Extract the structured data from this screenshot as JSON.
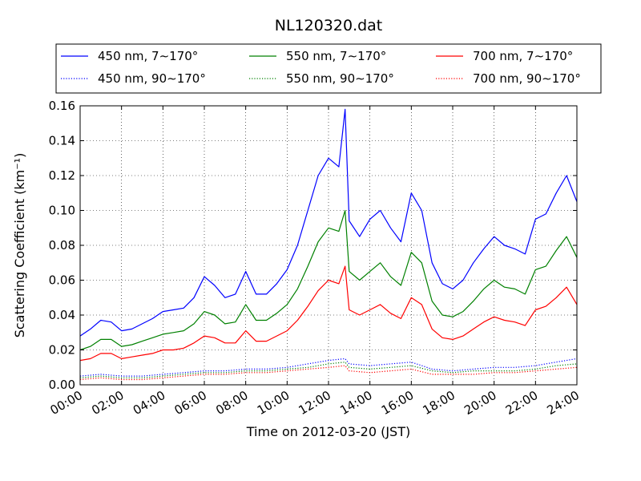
{
  "chart_data": {
    "type": "line",
    "title": "NL120320.dat",
    "xlabel": "Time on 2012-03-20 (JST)",
    "ylabel": "Scattering Coefficient (km⁻¹)",
    "xlim": [
      0,
      24
    ],
    "ylim": [
      0,
      0.16
    ],
    "grid": true,
    "legend_position": "top (above plot, 3 columns)",
    "x_ticks": [
      {
        "v": 0,
        "label": "00:00"
      },
      {
        "v": 2,
        "label": "02:00"
      },
      {
        "v": 4,
        "label": "04:00"
      },
      {
        "v": 6,
        "label": "06:00"
      },
      {
        "v": 8,
        "label": "08:00"
      },
      {
        "v": 10,
        "label": "10:00"
      },
      {
        "v": 12,
        "label": "12:00"
      },
      {
        "v": 14,
        "label": "14:00"
      },
      {
        "v": 16,
        "label": "16:00"
      },
      {
        "v": 18,
        "label": "18:00"
      },
      {
        "v": 20,
        "label": "20:00"
      },
      {
        "v": 22,
        "label": "22:00"
      },
      {
        "v": 24,
        "label": "24:00"
      }
    ],
    "y_ticks": [
      {
        "v": 0.0,
        "label": "0.00"
      },
      {
        "v": 0.02,
        "label": "0.02"
      },
      {
        "v": 0.04,
        "label": "0.04"
      },
      {
        "v": 0.06,
        "label": "0.06"
      },
      {
        "v": 0.08,
        "label": "0.08"
      },
      {
        "v": 0.1,
        "label": "0.10"
      },
      {
        "v": 0.12,
        "label": "0.12"
      },
      {
        "v": 0.14,
        "label": "0.14"
      },
      {
        "v": 0.16,
        "label": "0.16"
      }
    ],
    "series": [
      {
        "name": "450 nm, 7∼170°",
        "color": "#0000ff",
        "style": "solid",
        "x": [
          0,
          0.5,
          1,
          1.5,
          2,
          2.5,
          3,
          3.5,
          4,
          4.5,
          5,
          5.5,
          6,
          6.5,
          7,
          7.5,
          8,
          8.5,
          9,
          9.5,
          10,
          10.5,
          11,
          11.5,
          12,
          12.5,
          12.8,
          13,
          13.5,
          14,
          14.5,
          15,
          15.5,
          16,
          16.5,
          17,
          17.5,
          18,
          18.5,
          19,
          19.5,
          20,
          20.5,
          21,
          21.5,
          22,
          22.5,
          23,
          23.5,
          24
        ],
        "values": [
          0.028,
          0.032,
          0.037,
          0.036,
          0.031,
          0.032,
          0.035,
          0.038,
          0.042,
          0.043,
          0.044,
          0.05,
          0.062,
          0.057,
          0.05,
          0.052,
          0.065,
          0.052,
          0.052,
          0.058,
          0.066,
          0.08,
          0.1,
          0.12,
          0.13,
          0.125,
          0.158,
          0.094,
          0.085,
          0.095,
          0.1,
          0.09,
          0.082,
          0.11,
          0.1,
          0.07,
          0.058,
          0.055,
          0.06,
          0.07,
          0.078,
          0.085,
          0.08,
          0.078,
          0.075,
          0.095,
          0.098,
          0.11,
          0.12,
          0.105
        ]
      },
      {
        "name": "550 nm, 7∼170°",
        "color": "#008000",
        "style": "solid",
        "x": [
          0,
          0.5,
          1,
          1.5,
          2,
          2.5,
          3,
          3.5,
          4,
          4.5,
          5,
          5.5,
          6,
          6.5,
          7,
          7.5,
          8,
          8.5,
          9,
          9.5,
          10,
          10.5,
          11,
          11.5,
          12,
          12.5,
          12.8,
          13,
          13.5,
          14,
          14.5,
          15,
          15.5,
          16,
          16.5,
          17,
          17.5,
          18,
          18.5,
          19,
          19.5,
          20,
          20.5,
          21,
          21.5,
          22,
          22.5,
          23,
          23.5,
          24
        ],
        "values": [
          0.02,
          0.022,
          0.026,
          0.026,
          0.022,
          0.023,
          0.025,
          0.027,
          0.029,
          0.03,
          0.031,
          0.035,
          0.042,
          0.04,
          0.035,
          0.036,
          0.046,
          0.037,
          0.037,
          0.041,
          0.046,
          0.055,
          0.068,
          0.082,
          0.09,
          0.088,
          0.1,
          0.065,
          0.06,
          0.065,
          0.07,
          0.062,
          0.057,
          0.076,
          0.07,
          0.048,
          0.04,
          0.039,
          0.042,
          0.048,
          0.055,
          0.06,
          0.056,
          0.055,
          0.052,
          0.066,
          0.068,
          0.077,
          0.085,
          0.073
        ]
      },
      {
        "name": "700 nm, 7∼170°",
        "color": "#ff0000",
        "style": "solid",
        "x": [
          0,
          0.5,
          1,
          1.5,
          2,
          2.5,
          3,
          3.5,
          4,
          4.5,
          5,
          5.5,
          6,
          6.5,
          7,
          7.5,
          8,
          8.5,
          9,
          9.5,
          10,
          10.5,
          11,
          11.5,
          12,
          12.5,
          12.8,
          13,
          13.5,
          14,
          14.5,
          15,
          15.5,
          16,
          16.5,
          17,
          17.5,
          18,
          18.5,
          19,
          19.5,
          20,
          20.5,
          21,
          21.5,
          22,
          22.5,
          23,
          23.5,
          24
        ],
        "values": [
          0.014,
          0.015,
          0.018,
          0.018,
          0.015,
          0.016,
          0.017,
          0.018,
          0.02,
          0.02,
          0.021,
          0.024,
          0.028,
          0.027,
          0.024,
          0.024,
          0.031,
          0.025,
          0.025,
          0.028,
          0.031,
          0.037,
          0.045,
          0.054,
          0.06,
          0.058,
          0.068,
          0.043,
          0.04,
          0.043,
          0.046,
          0.041,
          0.038,
          0.05,
          0.046,
          0.032,
          0.027,
          0.026,
          0.028,
          0.032,
          0.036,
          0.039,
          0.037,
          0.036,
          0.034,
          0.043,
          0.045,
          0.05,
          0.056,
          0.046
        ]
      },
      {
        "name": "450 nm, 90∼170°",
        "color": "#0000ff",
        "style": "dotted",
        "x": [
          0,
          1,
          2,
          3,
          4,
          5,
          6,
          7,
          8,
          9,
          10,
          11,
          12,
          12.8,
          13,
          14,
          15,
          16,
          17,
          18,
          19,
          20,
          21,
          22,
          23,
          24
        ],
        "values": [
          0.005,
          0.006,
          0.005,
          0.005,
          0.006,
          0.007,
          0.008,
          0.008,
          0.009,
          0.009,
          0.01,
          0.012,
          0.014,
          0.015,
          0.012,
          0.011,
          0.012,
          0.013,
          0.009,
          0.008,
          0.009,
          0.01,
          0.01,
          0.011,
          0.013,
          0.015
        ]
      },
      {
        "name": "550 nm, 90∼170°",
        "color": "#008000",
        "style": "dotted",
        "x": [
          0,
          1,
          2,
          3,
          4,
          5,
          6,
          7,
          8,
          9,
          10,
          11,
          12,
          12.8,
          13,
          14,
          15,
          16,
          17,
          18,
          19,
          20,
          21,
          22,
          23,
          24
        ],
        "values": [
          0.004,
          0.005,
          0.004,
          0.004,
          0.005,
          0.006,
          0.007,
          0.007,
          0.008,
          0.008,
          0.009,
          0.01,
          0.012,
          0.013,
          0.01,
          0.009,
          0.01,
          0.011,
          0.008,
          0.007,
          0.008,
          0.008,
          0.008,
          0.009,
          0.011,
          0.012
        ]
      },
      {
        "name": "700 nm, 90∼170°",
        "color": "#ff0000",
        "style": "dotted",
        "x": [
          0,
          1,
          2,
          3,
          4,
          5,
          6,
          7,
          8,
          9,
          10,
          11,
          12,
          12.8,
          13,
          14,
          15,
          16,
          17,
          18,
          19,
          20,
          21,
          22,
          23,
          24
        ],
        "values": [
          0.003,
          0.004,
          0.003,
          0.003,
          0.004,
          0.005,
          0.006,
          0.006,
          0.007,
          0.007,
          0.008,
          0.009,
          0.01,
          0.011,
          0.008,
          0.007,
          0.008,
          0.009,
          0.006,
          0.006,
          0.006,
          0.007,
          0.007,
          0.008,
          0.009,
          0.01
        ]
      }
    ]
  }
}
